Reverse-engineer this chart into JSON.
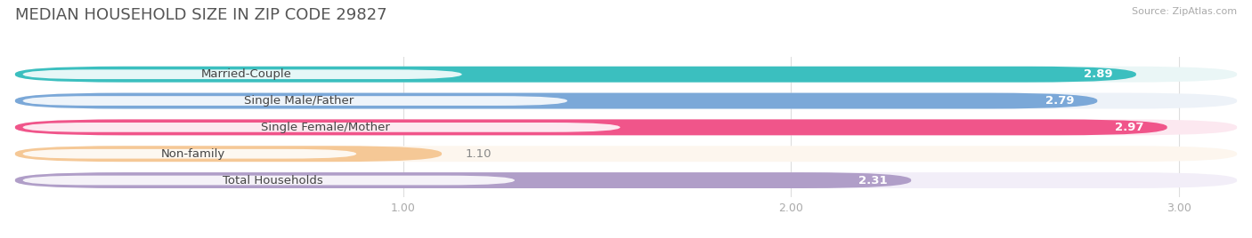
{
  "title": "MEDIAN HOUSEHOLD SIZE IN ZIP CODE 29827",
  "source": "Source: ZipAtlas.com",
  "categories": [
    "Married-Couple",
    "Single Male/Father",
    "Single Female/Mother",
    "Non-family",
    "Total Households"
  ],
  "values": [
    2.89,
    2.79,
    2.97,
    1.1,
    2.31
  ],
  "bar_colors": [
    "#3bbfbf",
    "#7ba8d8",
    "#f0558a",
    "#f5c896",
    "#b09ec8"
  ],
  "bar_bg_colors": [
    "#eaf6f6",
    "#edf2f8",
    "#fce8f0",
    "#fdf6ee",
    "#f2eef8"
  ],
  "xlim": [
    0,
    3.15
  ],
  "xticks": [
    1.0,
    2.0,
    3.0
  ],
  "title_fontsize": 13,
  "label_fontsize": 9.5,
  "value_fontsize": 9.5,
  "background_color": "#ffffff",
  "title_color": "#555555",
  "source_color": "#aaaaaa",
  "tick_color": "#aaaaaa"
}
